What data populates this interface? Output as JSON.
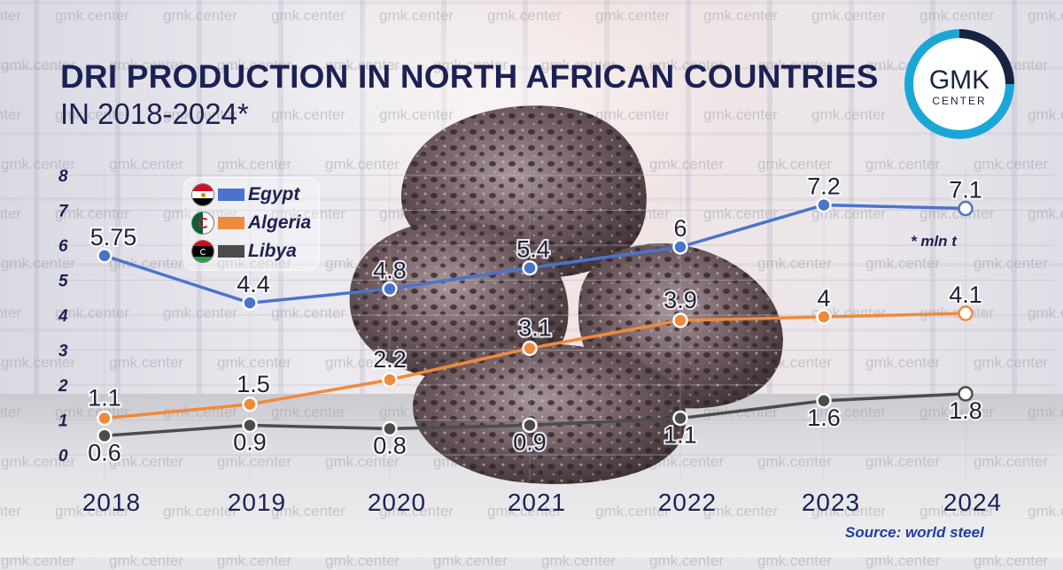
{
  "title": {
    "line1": "DRI PRODUCTION IN NORTH AFRICAN COUNTRIES",
    "line2": "IN 2018-2024*"
  },
  "logo": {
    "name": "GMK",
    "sub": "CENTER"
  },
  "watermark_text": "gmk.center",
  "unit_note": "* mln t",
  "source": "Source: world steel",
  "colors": {
    "egypt": "#4a74cc",
    "algeria": "#ef8a3c",
    "libya": "#4c4c4c",
    "title": "#1c2155",
    "logo_ring": "#1aa7d8"
  },
  "chart_data": {
    "type": "line",
    "title": "DRI PRODUCTION IN NORTH AFRICAN COUNTRIES IN 2018-2024*",
    "xlabel": "",
    "ylabel": "* mln t",
    "categories": [
      "2018",
      "2019",
      "2020",
      "2021",
      "2022",
      "2023",
      "2024"
    ],
    "ylim": [
      0,
      8
    ],
    "yticks": [
      "0",
      "1",
      "2",
      "3",
      "4",
      "5",
      "6",
      "7",
      "8"
    ],
    "grid": true,
    "legend_position": "top-left",
    "series": [
      {
        "name": "Egypt",
        "color": "#4a74cc",
        "flag": "egypt-flag-icon",
        "values": [
          5.75,
          4.4,
          4.8,
          5.4,
          6,
          7.2,
          7.1
        ],
        "labels": [
          "5.75",
          "4.4",
          "4.8",
          "5.4",
          "6",
          "7.2",
          "7.1"
        ]
      },
      {
        "name": "Algeria",
        "color": "#ef8a3c",
        "flag": "algeria-flag-icon",
        "values": [
          1.1,
          1.5,
          2.2,
          3.1,
          3.9,
          4,
          4.1
        ],
        "labels": [
          "1.1",
          "1.5",
          "2.2",
          "3.1",
          "3.9",
          "4",
          "4.1"
        ]
      },
      {
        "name": "Libya",
        "color": "#4c4c4c",
        "flag": "libya-flag-icon",
        "values": [
          0.6,
          0.9,
          0.8,
          0.9,
          1.1,
          1.6,
          1.8
        ],
        "labels": [
          "0.6",
          "0.9",
          "0.8",
          "0.9",
          "1.1",
          "1.6",
          "1.8"
        ]
      }
    ]
  }
}
